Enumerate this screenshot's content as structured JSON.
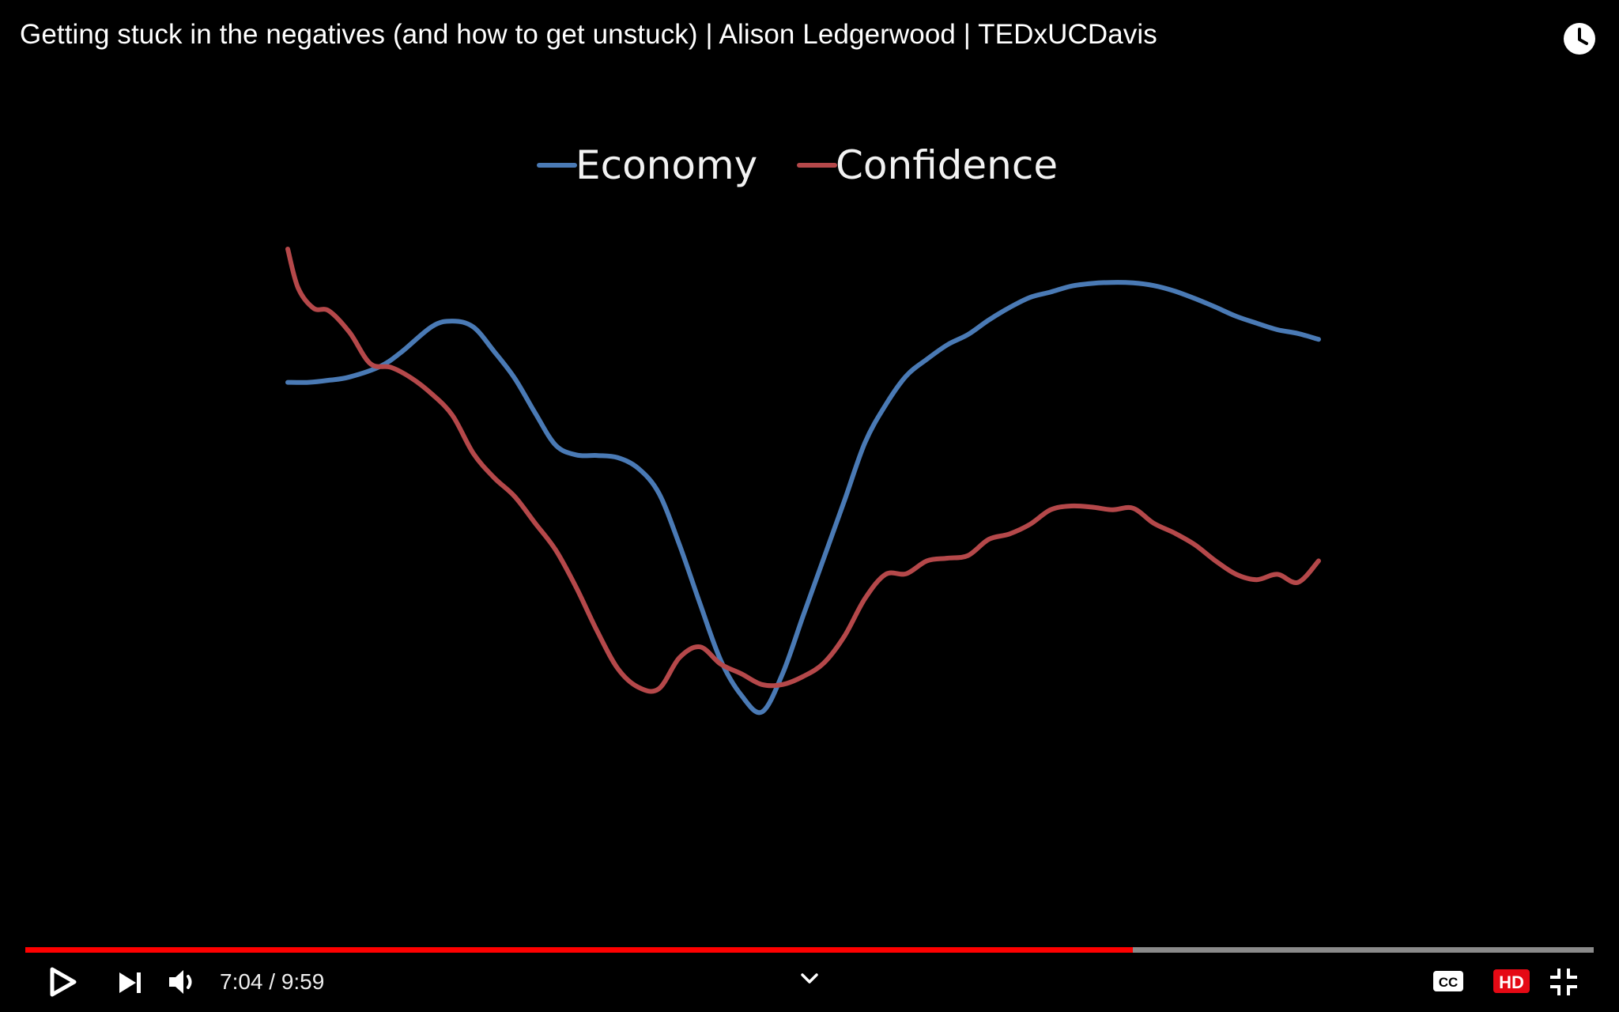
{
  "video": {
    "title": "Getting stuck in the negatives (and how to get unstuck) | Alison Ledgerwood | TEDxUCDavis"
  },
  "player": {
    "time_display": "7:04 / 9:59",
    "progress_fraction": 0.706,
    "hd_label": "HD",
    "cc_label": "CC",
    "played_color": "#ff0000",
    "buffer_color": "#8a8a8a",
    "icons": [
      "play-icon",
      "next-icon",
      "volume-icon",
      "chevron-down-icon",
      "cc-icon",
      "hd-icon",
      "exit-fullscreen-icon",
      "clock-icon"
    ]
  },
  "chart_data": {
    "type": "line",
    "title": "",
    "xlabel": "",
    "ylabel": "",
    "legend_position": "top-center",
    "grid": false,
    "xlim": [
      0,
      1000
    ],
    "ylim": [
      0,
      1000
    ],
    "series": [
      {
        "name": "Economy",
        "color": "#4a7ab5",
        "x": [
          0,
          20,
          40,
          60,
          90,
          110,
          140,
          160,
          180,
          200,
          220,
          240,
          260,
          280,
          300,
          320,
          340,
          360,
          380,
          400,
          420,
          440,
          460,
          480,
          500,
          520,
          540,
          560,
          580,
          600,
          620,
          640,
          660,
          680,
          700,
          720,
          740,
          760,
          780,
          800,
          820,
          840,
          860,
          880,
          900,
          920,
          940,
          960,
          980,
          1000
        ],
        "y": [
          752,
          752,
          756,
          762,
          782,
          808,
          856,
          866,
          855,
          810,
          760,
          695,
          635,
          617,
          616,
          612,
          592,
          546,
          450,
          340,
          235,
          170,
          139,
          210,
          318,
          425,
          532,
          640,
          710,
          764,
          795,
          822,
          841,
          868,
          891,
          910,
          920,
          931,
          936,
          938,
          937,
          932,
          922,
          908,
          892,
          875,
          862,
          850,
          843,
          832
        ]
      },
      {
        "name": "Confidence",
        "color": "#b5484a",
        "x": [
          0,
          10,
          25,
          40,
          60,
          80,
          100,
          120,
          140,
          160,
          180,
          200,
          220,
          240,
          260,
          280,
          300,
          320,
          340,
          360,
          380,
          400,
          420,
          440,
          460,
          480,
          500,
          520,
          540,
          560,
          580,
          600,
          620,
          640,
          660,
          680,
          700,
          720,
          740,
          760,
          780,
          800,
          820,
          840,
          860,
          880,
          900,
          920,
          940,
          960,
          980,
          1000
        ],
        "y": [
          1000,
          928,
          890,
          885,
          845,
          787,
          780,
          760,
          730,
          690,
          620,
          575,
          540,
          490,
          440,
          370,
          290,
          220,
          185,
          182,
          240,
          260,
          228,
          210,
          190,
          190,
          205,
          230,
          280,
          350,
          395,
          396,
          420,
          425,
          430,
          460,
          470,
          488,
          515,
          522,
          520,
          515,
          518,
          490,
          472,
          450,
          420,
          395,
          385,
          395,
          380,
          420
        ]
      }
    ]
  }
}
